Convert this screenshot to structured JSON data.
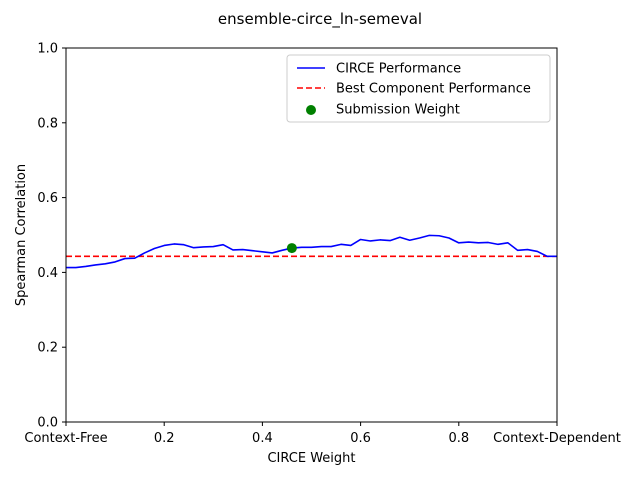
{
  "chart_data": {
    "type": "line",
    "title": "ensemble-circe_ln-semeval",
    "xlabel": "CIRCE Weight",
    "ylabel": "Spearman Correlation",
    "xlim": [
      0.0,
      1.0
    ],
    "ylim": [
      0.0,
      1.0
    ],
    "x_ticks": [
      {
        "value": 0.0,
        "label": "Context-Free"
      },
      {
        "value": 0.2,
        "label": "0.2"
      },
      {
        "value": 0.4,
        "label": "0.4"
      },
      {
        "value": 0.6,
        "label": "0.6"
      },
      {
        "value": 0.8,
        "label": "0.8"
      },
      {
        "value": 1.0,
        "label": "Context-Dependent"
      }
    ],
    "y_ticks": [
      {
        "value": 0.0,
        "label": "0.0"
      },
      {
        "value": 0.2,
        "label": "0.2"
      },
      {
        "value": 0.4,
        "label": "0.4"
      },
      {
        "value": 0.6,
        "label": "0.6"
      },
      {
        "value": 0.8,
        "label": "0.8"
      },
      {
        "value": 1.0,
        "label": "1.0"
      }
    ],
    "grid": false,
    "legend_position": "top-right",
    "series": [
      {
        "name": "CIRCE Performance",
        "kind": "line",
        "color": "#0000ff",
        "x": [
          0.0,
          0.02,
          0.04,
          0.06,
          0.08,
          0.1,
          0.12,
          0.14,
          0.16,
          0.18,
          0.2,
          0.22,
          0.24,
          0.26,
          0.28,
          0.3,
          0.32,
          0.34,
          0.36,
          0.38,
          0.4,
          0.42,
          0.44,
          0.46,
          0.48,
          0.5,
          0.52,
          0.54,
          0.56,
          0.58,
          0.6,
          0.62,
          0.64,
          0.66,
          0.68,
          0.7,
          0.72,
          0.74,
          0.76,
          0.78,
          0.8,
          0.82,
          0.84,
          0.86,
          0.88,
          0.9,
          0.92,
          0.94,
          0.96,
          0.98,
          1.0
        ],
        "y": [
          0.413,
          0.413,
          0.416,
          0.42,
          0.423,
          0.428,
          0.437,
          0.438,
          0.452,
          0.464,
          0.472,
          0.476,
          0.474,
          0.466,
          0.468,
          0.469,
          0.474,
          0.46,
          0.461,
          0.458,
          0.455,
          0.452,
          0.459,
          0.465,
          0.467,
          0.467,
          0.469,
          0.469,
          0.475,
          0.472,
          0.488,
          0.484,
          0.487,
          0.485,
          0.494,
          0.486,
          0.492,
          0.499,
          0.498,
          0.492,
          0.479,
          0.481,
          0.479,
          0.48,
          0.475,
          0.479,
          0.459,
          0.461,
          0.456,
          0.443,
          0.443
        ]
      },
      {
        "name": "Best Component Performance",
        "kind": "hline",
        "color": "#ff0000",
        "linestyle": "dashed",
        "y": 0.443
      },
      {
        "name": "Submission Weight",
        "kind": "scatter",
        "color": "#008000",
        "x": [
          0.46
        ],
        "y": [
          0.465
        ]
      }
    ]
  }
}
